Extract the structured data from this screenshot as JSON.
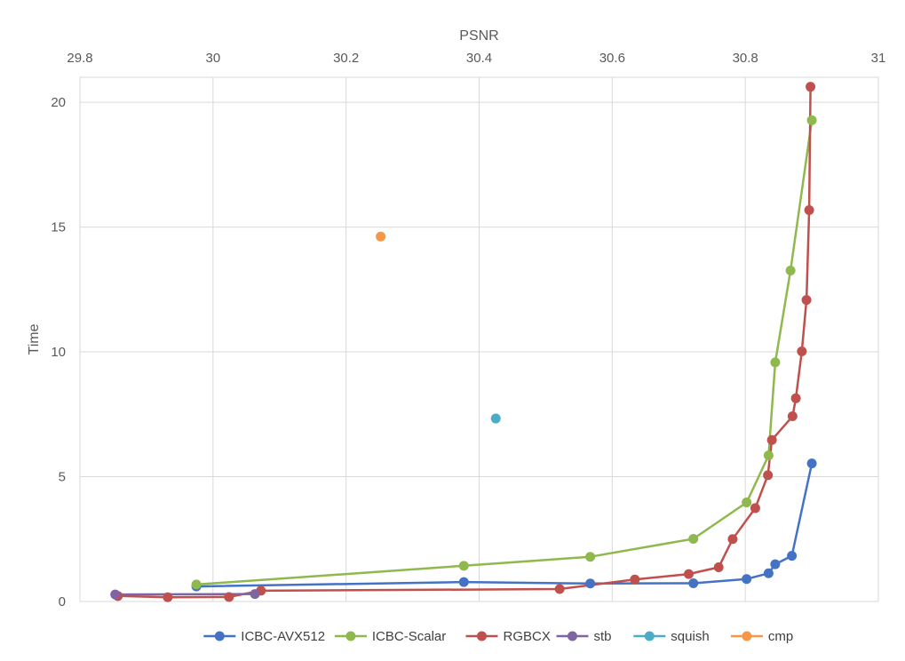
{
  "chart_data": {
    "type": "scatter",
    "xlabel": "PSNR",
    "ylabel": "Time",
    "xlim": [
      29.8,
      31
    ],
    "ylim": [
      0,
      22
    ],
    "x_ticks": [
      29.8,
      30,
      30.2,
      30.4,
      30.6,
      30.8,
      31
    ],
    "x_tick_labels": [
      "29.8",
      "30",
      "30.2",
      "30.4",
      "30.6",
      "30.8",
      "31"
    ],
    "y_ticks": [
      0,
      5,
      10,
      15,
      20
    ],
    "y_tick_labels": [
      "0",
      "5",
      "10",
      "15",
      "20"
    ],
    "x_axis_position": "top",
    "grid": true,
    "legend": "bottom",
    "series": [
      {
        "name": "ICBC-AVX512",
        "color": "#4472c4",
        "lines": true,
        "x": [
          29.975,
          30.377,
          30.567,
          30.722,
          30.802,
          30.835,
          30.845,
          30.87,
          30.9
        ],
        "y": [
          0.6,
          0.78,
          0.72,
          0.73,
          0.9,
          1.13,
          1.49,
          1.83,
          5.53
        ]
      },
      {
        "name": "ICBC-Scalar",
        "color": "#8fb84d",
        "lines": true,
        "x": [
          29.975,
          30.377,
          30.567,
          30.722,
          30.802,
          30.835,
          30.845,
          30.868,
          30.9
        ],
        "y": [
          0.68,
          1.43,
          1.79,
          2.51,
          3.97,
          5.85,
          9.58,
          13.26,
          19.28
        ]
      },
      {
        "name": "RGBCX",
        "color": "#c0504d",
        "lines": true,
        "x": [
          29.857,
          29.932,
          30.024,
          30.072,
          30.521,
          30.634,
          30.715,
          30.76,
          30.781,
          30.815,
          30.834,
          30.84,
          30.871,
          30.876,
          30.885,
          30.892,
          30.896,
          30.898
        ],
        "y": [
          0.22,
          0.17,
          0.18,
          0.43,
          0.5,
          0.88,
          1.1,
          1.37,
          2.5,
          3.74,
          5.06,
          6.47,
          7.42,
          8.14,
          10.02,
          12.08,
          15.68,
          20.62
        ]
      },
      {
        "name": "stb",
        "color": "#8064a2",
        "lines": true,
        "x": [
          29.853,
          30.063
        ],
        "y": [
          0.28,
          0.3
        ]
      },
      {
        "name": "squish",
        "color": "#4bacc6",
        "lines": false,
        "x": [
          30.425
        ],
        "y": [
          7.33
        ]
      },
      {
        "name": "cmp",
        "color": "#f79646",
        "lines": false,
        "x": [
          30.252
        ],
        "y": [
          14.62
        ]
      }
    ]
  }
}
